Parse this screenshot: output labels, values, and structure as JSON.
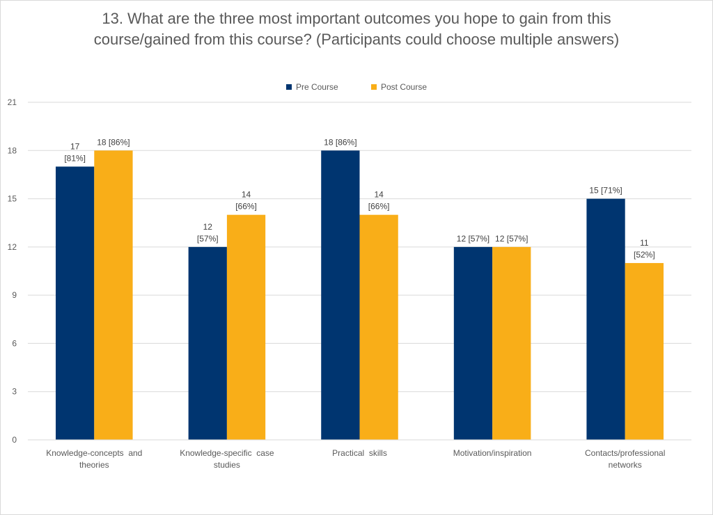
{
  "chart_data": {
    "type": "bar",
    "title": "13. What are the three most important outcomes you hope to gain from this course/gained from this course? (Participants could choose multiple answers)",
    "categories": [
      [
        "Knowledge-concepts  and",
        "theories"
      ],
      [
        "Knowledge-specific  case",
        "studies"
      ],
      [
        "Practical  skills"
      ],
      [
        "Motivation/inspiration"
      ],
      [
        "Contacts/professional",
        "networks"
      ]
    ],
    "series": [
      {
        "name": "Pre Course",
        "color": "#003570",
        "values": [
          17,
          12,
          18,
          12,
          15
        ],
        "labels": [
          [
            "17",
            "[81%]"
          ],
          [
            "12",
            "[57%]"
          ],
          [
            "18 [86%]"
          ],
          [
            "12 [57%]"
          ],
          [
            "15 [71%]"
          ]
        ]
      },
      {
        "name": "Post Course",
        "color": "#f9ae18",
        "values": [
          18,
          14,
          14,
          12,
          11
        ],
        "labels": [
          [
            "18 [86%]"
          ],
          [
            "14",
            "[66%]"
          ],
          [
            "14",
            "[66%]"
          ],
          [
            "12 [57%]"
          ],
          [
            "11",
            "[52%]"
          ]
        ]
      }
    ],
    "ylim": [
      0,
      21
    ],
    "yticks": [
      0,
      3,
      6,
      9,
      12,
      15,
      18,
      21
    ],
    "grid": true,
    "legend_position": "top"
  }
}
